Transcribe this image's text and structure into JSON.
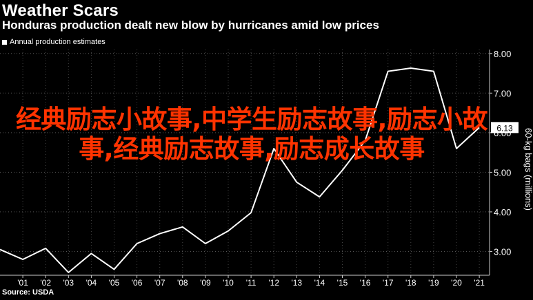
{
  "header": {
    "title": "Weather Scars",
    "subtitle": "Honduras production dealt new blow by hurricanes amid low prices"
  },
  "legend": {
    "label": "Annual production estimates"
  },
  "source": "Source: USDA",
  "overlay_text": "经典励志小故事,中学生励志故事,励志小故事,经典励志故事,励志成长故事",
  "colors": {
    "background": "#000000",
    "line": "#ffffff",
    "overlay": "#ff3300"
  },
  "chart_data": {
    "type": "line",
    "ylabel": "60-kg bags (millions)",
    "ylim": [
      2.4,
      8.1
    ],
    "yticks": [
      "3.00",
      "4.00",
      "5.00",
      "6.00",
      "7.00",
      "8.00"
    ],
    "ytick_values": [
      3,
      4,
      5,
      6,
      7,
      8
    ],
    "last_value_label": "6.13",
    "categories": [
      "'01",
      "'02",
      "'03",
      "'04",
      "'05",
      "'06",
      "'07",
      "'08",
      "'09",
      "'10",
      "'11",
      "'12",
      "'13",
      "'14",
      "'15",
      "'16",
      "'17",
      "'18",
      "'19",
      "'20",
      "'21"
    ],
    "x": [
      2000,
      2001,
      2002,
      2003,
      2004,
      2005,
      2006,
      2007,
      2008,
      2009,
      2010,
      2011,
      2012,
      2013,
      2014,
      2015,
      2016,
      2017,
      2018,
      2019,
      2020,
      2021
    ],
    "series": [
      {
        "values": [
          3.05,
          2.8,
          3.08,
          2.47,
          2.95,
          2.55,
          3.2,
          3.45,
          3.62,
          3.2,
          3.52,
          3.98,
          5.6,
          4.75,
          4.38,
          5.05,
          5.8,
          7.55,
          7.63,
          7.55,
          5.6,
          6.13
        ]
      }
    ]
  }
}
